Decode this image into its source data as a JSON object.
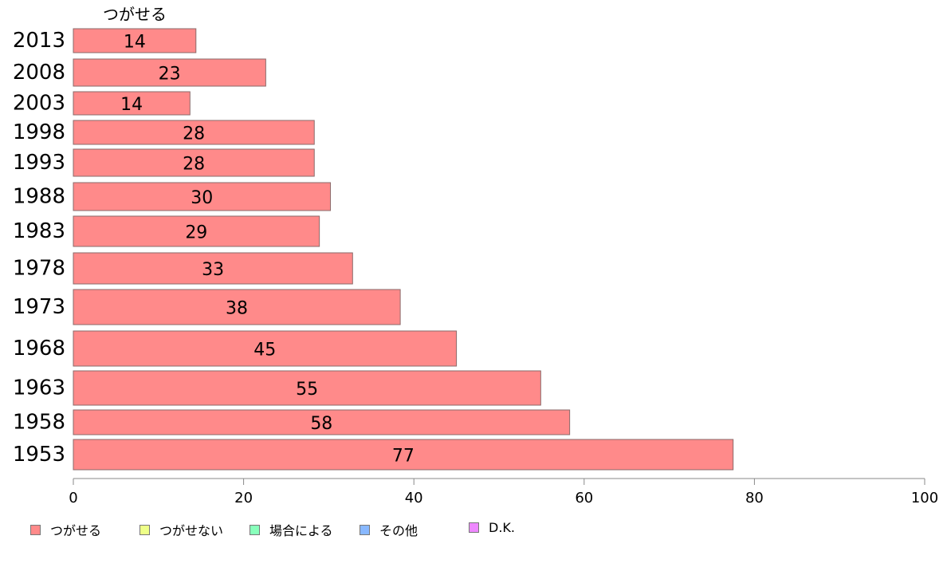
{
  "chart_data": {
    "type": "bar",
    "orientation": "horizontal",
    "series_label": "つがせる",
    "categories": [
      "2013",
      "2008",
      "2003",
      "1998",
      "1993",
      "1988",
      "1983",
      "1978",
      "1973",
      "1968",
      "1963",
      "1958",
      "1953"
    ],
    "values": [
      14,
      23,
      14,
      28,
      28,
      30,
      29,
      33,
      38,
      45,
      55,
      58,
      77
    ],
    "bar_extent": [
      14.4,
      22.6,
      13.7,
      28.3,
      28.3,
      30.2,
      28.9,
      32.8,
      38.4,
      45.0,
      54.9,
      58.3,
      77.5
    ],
    "xlim": [
      0,
      100
    ],
    "xticks": [
      "0",
      "20",
      "40",
      "60",
      "80",
      "100"
    ],
    "bar_color": "#ff8a8a",
    "legend": [
      {
        "label": "つがせる",
        "color": "#ff8a8a"
      },
      {
        "label": "つがせない",
        "color": "#eeff88"
      },
      {
        "label": "場合による",
        "color": "#88ffbb"
      },
      {
        "label": "その他",
        "color": "#88b8ff"
      },
      {
        "label": "D.K.",
        "color": "#ee88ff"
      }
    ]
  }
}
